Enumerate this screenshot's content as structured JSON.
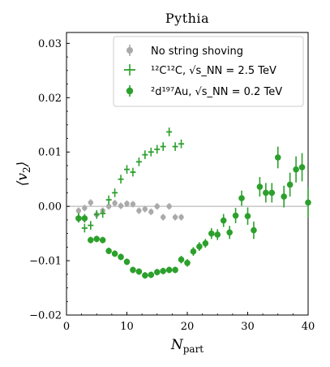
{
  "chart_data": {
    "type": "scatter",
    "title": "Pythia",
    "xlabel": "N",
    "xlabel_sub": "part",
    "ylabel": "⟨v",
    "ylabel_sub": "2",
    "ylabel_close": "⟩",
    "xlim": [
      0,
      40
    ],
    "ylim": [
      -0.02,
      0.032
    ],
    "x_ticks": [
      0,
      10,
      20,
      30,
      40
    ],
    "x_tick_labels": [
      "0",
      "10",
      "20",
      "30",
      "40"
    ],
    "y_ticks": [
      -0.02,
      -0.01,
      0.0,
      0.01,
      0.02,
      0.03
    ],
    "y_tick_labels": [
      "−0.02",
      "−0.01",
      "0.00",
      "0.01",
      "0.02",
      "0.03"
    ],
    "reference_line": 0.0,
    "legend_position": "top-right",
    "colors": {
      "gray": "#aaaaaa",
      "green": "#2ca02c",
      "reference": "#bbbbbb"
    },
    "series": [
      {
        "name": "No string shoving",
        "marker": "circle-small",
        "color": "#aaaaaa",
        "points": [
          {
            "x": 2,
            "y": -0.0008,
            "err": 0.0006
          },
          {
            "x": 3,
            "y": -0.0003,
            "err": 0.0006
          },
          {
            "x": 4,
            "y": 0.0007,
            "err": 0.0006
          },
          {
            "x": 5,
            "y": -0.0015,
            "err": 0.0006
          },
          {
            "x": 6,
            "y": -0.0008,
            "err": 0.0006
          },
          {
            "x": 7,
            "y": 0.0,
            "err": 0.0006
          },
          {
            "x": 8,
            "y": 0.0006,
            "err": 0.0006
          },
          {
            "x": 9,
            "y": 0.0001,
            "err": 0.0006
          },
          {
            "x": 10,
            "y": 0.0005,
            "err": 0.0006
          },
          {
            "x": 11,
            "y": 0.0004,
            "err": 0.0006
          },
          {
            "x": 12,
            "y": -0.0008,
            "err": 0.0006
          },
          {
            "x": 13,
            "y": -0.0005,
            "err": 0.0006
          },
          {
            "x": 14,
            "y": -0.001,
            "err": 0.0006
          },
          {
            "x": 15,
            "y": 0.0,
            "err": 0.0006
          },
          {
            "x": 16,
            "y": -0.002,
            "err": 0.0006
          },
          {
            "x": 17,
            "y": 0.0,
            "err": 0.0006
          },
          {
            "x": 18,
            "y": -0.002,
            "err": 0.0006
          },
          {
            "x": 19,
            "y": -0.002,
            "err": 0.0006
          }
        ]
      },
      {
        "name": "12C12C, √sNN = 2.5 TeV",
        "marker": "plus",
        "color": "#2ca02c",
        "points": [
          {
            "x": 2,
            "y": -0.002,
            "err": 0.0008
          },
          {
            "x": 3,
            "y": -0.004,
            "err": 0.0008
          },
          {
            "x": 4,
            "y": -0.0035,
            "err": 0.0008
          },
          {
            "x": 5,
            "y": -0.0015,
            "err": 0.0008
          },
          {
            "x": 6,
            "y": -0.0013,
            "err": 0.0008
          },
          {
            "x": 7,
            "y": 0.0012,
            "err": 0.0008
          },
          {
            "x": 8,
            "y": 0.0025,
            "err": 0.0008
          },
          {
            "x": 9,
            "y": 0.005,
            "err": 0.0008
          },
          {
            "x": 10,
            "y": 0.0068,
            "err": 0.0008
          },
          {
            "x": 11,
            "y": 0.0063,
            "err": 0.0008
          },
          {
            "x": 12,
            "y": 0.0082,
            "err": 0.0008
          },
          {
            "x": 13,
            "y": 0.0095,
            "err": 0.0008
          },
          {
            "x": 14,
            "y": 0.01,
            "err": 0.0008
          },
          {
            "x": 15,
            "y": 0.0105,
            "err": 0.0008
          },
          {
            "x": 16,
            "y": 0.011,
            "err": 0.0008
          },
          {
            "x": 17,
            "y": 0.0137,
            "err": 0.0008
          },
          {
            "x": 18,
            "y": 0.011,
            "err": 0.0008
          },
          {
            "x": 19,
            "y": 0.0115,
            "err": 0.0008
          }
        ]
      },
      {
        "name": "2d197Au, √sNN = 0.2 TeV",
        "marker": "circle",
        "color": "#2ca02c",
        "points": [
          {
            "x": 2,
            "y": -0.0022,
            "err": 0.0008
          },
          {
            "x": 3,
            "y": -0.0022,
            "err": 0.0008
          },
          {
            "x": 4,
            "y": -0.0062,
            "err": 0.0006
          },
          {
            "x": 5,
            "y": -0.006,
            "err": 0.0006
          },
          {
            "x": 6,
            "y": -0.0062,
            "err": 0.0006
          },
          {
            "x": 7,
            "y": -0.0082,
            "err": 0.0006
          },
          {
            "x": 8,
            "y": -0.0087,
            "err": 0.0006
          },
          {
            "x": 9,
            "y": -0.0093,
            "err": 0.0006
          },
          {
            "x": 10,
            "y": -0.0102,
            "err": 0.0006
          },
          {
            "x": 11,
            "y": -0.0117,
            "err": 0.0006
          },
          {
            "x": 12,
            "y": -0.012,
            "err": 0.0006
          },
          {
            "x": 13,
            "y": -0.0127,
            "err": 0.0006
          },
          {
            "x": 14,
            "y": -0.0126,
            "err": 0.0006
          },
          {
            "x": 15,
            "y": -0.0121,
            "err": 0.0006
          },
          {
            "x": 16,
            "y": -0.0119,
            "err": 0.0006
          },
          {
            "x": 17,
            "y": -0.0117,
            "err": 0.0006
          },
          {
            "x": 18,
            "y": -0.0117,
            "err": 0.0006
          },
          {
            "x": 19,
            "y": -0.0098,
            "err": 0.0007
          },
          {
            "x": 20,
            "y": -0.0104,
            "err": 0.0007
          },
          {
            "x": 21,
            "y": -0.0083,
            "err": 0.0008
          },
          {
            "x": 22,
            "y": -0.0074,
            "err": 0.0008
          },
          {
            "x": 23,
            "y": -0.0068,
            "err": 0.0008
          },
          {
            "x": 24,
            "y": -0.005,
            "err": 0.001
          },
          {
            "x": 25,
            "y": -0.0052,
            "err": 0.001
          },
          {
            "x": 26,
            "y": -0.0026,
            "err": 0.0012
          },
          {
            "x": 27,
            "y": -0.0048,
            "err": 0.0012
          },
          {
            "x": 28,
            "y": -0.0017,
            "err": 0.0014
          },
          {
            "x": 29,
            "y": 0.0015,
            "err": 0.0014
          },
          {
            "x": 30,
            "y": -0.0018,
            "err": 0.0016
          },
          {
            "x": 31,
            "y": -0.0044,
            "err": 0.0016
          },
          {
            "x": 32,
            "y": 0.0036,
            "err": 0.0018
          },
          {
            "x": 33,
            "y": 0.0025,
            "err": 0.0018
          },
          {
            "x": 34,
            "y": 0.0025,
            "err": 0.0018
          },
          {
            "x": 35,
            "y": 0.009,
            "err": 0.002
          },
          {
            "x": 36,
            "y": 0.0018,
            "err": 0.002
          },
          {
            "x": 37,
            "y": 0.004,
            "err": 0.0022
          },
          {
            "x": 38,
            "y": 0.0068,
            "err": 0.0024
          },
          {
            "x": 39,
            "y": 0.0072,
            "err": 0.0026
          },
          {
            "x": 40,
            "y": 0.0007,
            "err": 0.0028
          }
        ]
      }
    ],
    "legend": [
      {
        "marker": "circle-small",
        "color": "#aaaaaa",
        "text": "No string shoving"
      },
      {
        "marker": "plus",
        "color": "#2ca02c",
        "text": "¹²C¹²C, √s_NN = 2.5 TeV"
      },
      {
        "marker": "circle",
        "color": "#2ca02c",
        "text": "²d¹⁹⁷Au, √s_NN = 0.2 TeV"
      }
    ]
  }
}
